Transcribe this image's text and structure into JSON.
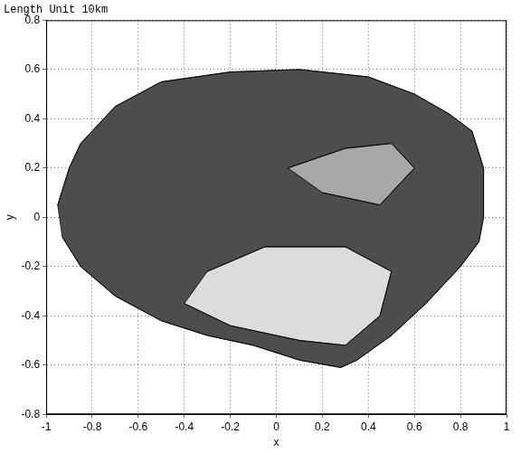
{
  "chart_data": {
    "type": "polygon",
    "title": "Length Unit 10km",
    "x_label": "x",
    "y_label": "y",
    "series": [
      {
        "color": "#4d4d4d",
        "x": [
          -0.95,
          -0.9,
          -0.85,
          -0.7,
          -0.5,
          -0.2,
          0.1,
          0.4,
          0.6,
          0.75,
          0.85,
          0.9,
          0.9,
          0.88,
          0.8,
          0.65,
          0.5,
          0.35,
          0.28,
          0.1,
          -0.1,
          -0.3,
          -0.5,
          -0.7,
          -0.85,
          -0.93
        ],
        "values": [
          0.05,
          0.2,
          0.3,
          0.45,
          0.55,
          0.59,
          0.6,
          0.57,
          0.5,
          0.42,
          0.35,
          0.2,
          0.0,
          -0.1,
          -0.2,
          -0.35,
          -0.48,
          -0.58,
          -0.61,
          -0.58,
          -0.52,
          -0.48,
          -0.42,
          -0.32,
          -0.2,
          -0.08
        ]
      },
      {
        "color": "#dcdcdc",
        "x": [
          -0.3,
          -0.05,
          0.3,
          0.5,
          0.45,
          0.3,
          0.1,
          -0.2,
          -0.4
        ],
        "values": [
          -0.22,
          -0.12,
          -0.12,
          -0.22,
          -0.4,
          -0.52,
          -0.5,
          -0.44,
          -0.35
        ]
      },
      {
        "color": "#a8a8a8",
        "x": [
          0.05,
          0.3,
          0.5,
          0.6,
          0.45,
          0.2
        ],
        "values": [
          0.2,
          0.28,
          0.3,
          0.2,
          0.05,
          0.1
        ]
      }
    ],
    "xlim": [
      -1,
      1
    ],
    "ylim": [
      -0.8,
      0.8
    ],
    "xticks": [
      -1,
      -0.8,
      -0.6,
      -0.4,
      -0.2,
      0,
      0.2,
      0.4,
      0.6,
      0.8,
      1
    ],
    "yticks": [
      -0.8,
      -0.6,
      -0.4,
      -0.2,
      0,
      0.2,
      0.4,
      0.6,
      0.8
    ],
    "grid": true
  }
}
